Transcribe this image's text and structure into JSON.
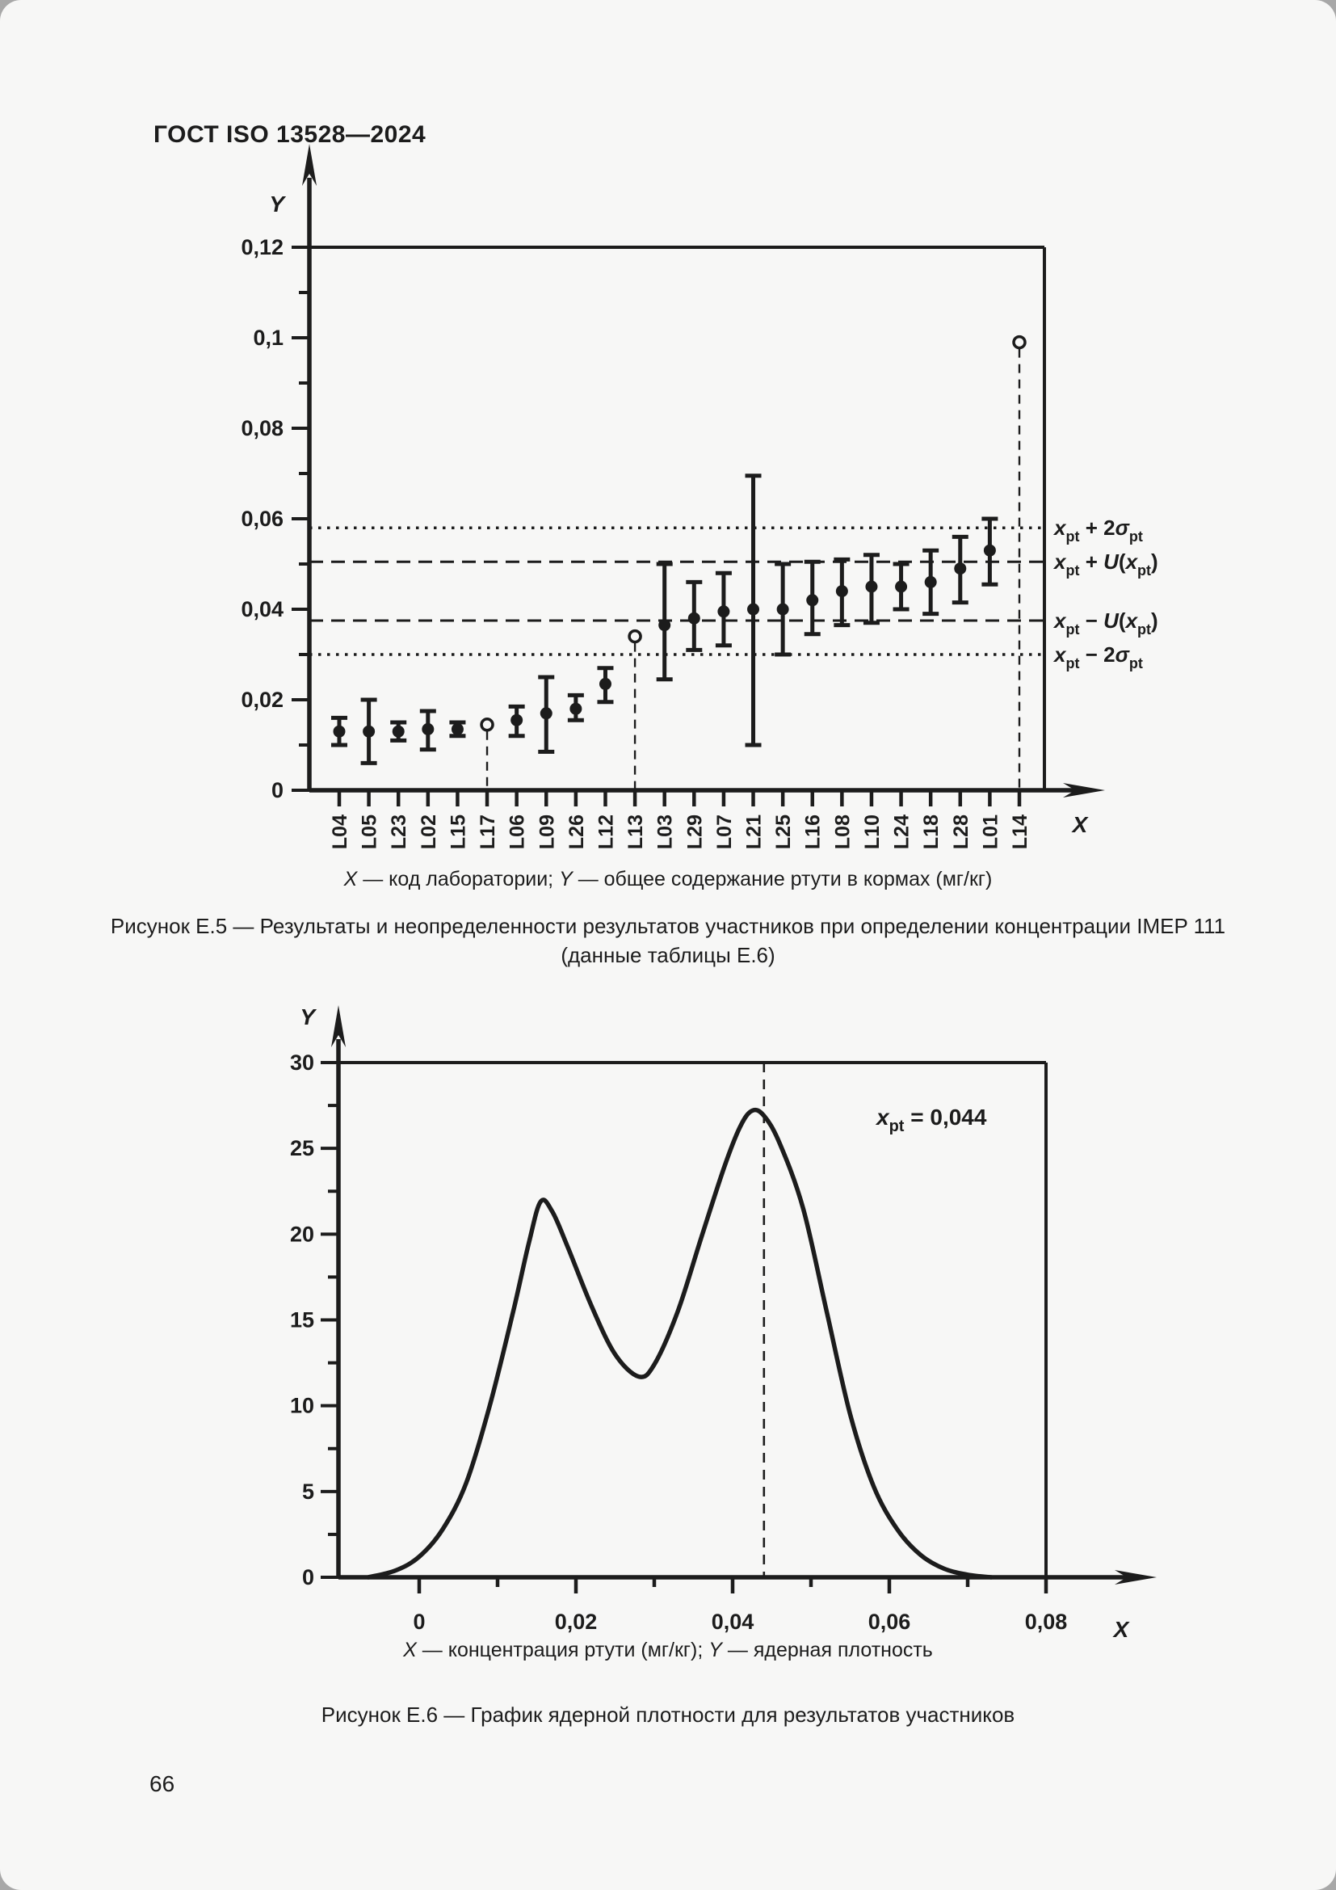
{
  "page": {
    "header": "ГОСТ ISO 13528—2024",
    "page_number": "66",
    "background": "#f7f7f6",
    "ink": "#1c1c1c"
  },
  "figure_e5": {
    "legend_x_var": "X",
    "legend_x_rest": " — код лаборатории; ",
    "legend_y_var": "Y",
    "legend_y_rest": " — общее содержание ртути в кормах (мг/кг)",
    "caption_line1": "Рисунок Е.5 — Результаты и неопределенности результатов участников при определении концентрации IMEP 111",
    "caption_line2": "(данные таблицы Е.6)"
  },
  "figure_e6": {
    "legend_x_var": "X",
    "legend_x_rest": " — концентрация ртути (мг/кг); ",
    "legend_y_var": "Y",
    "legend_y_rest": " — ядерная плотность",
    "caption": "Рисунок Е.6 — График ядерной плотности для результатов участников"
  },
  "chart_data": [
    {
      "type": "scatter",
      "title": "Результаты и неопределенности результатов участников, IMEP 111",
      "xlabel": "X",
      "ylabel": "Y",
      "ylim": [
        0,
        0.12
      ],
      "y_ticks": [
        0,
        0.02,
        0.04,
        0.06,
        0.08,
        0.1,
        0.12
      ],
      "y_tick_labels": [
        "0",
        "0,02",
        "0,04",
        "0,06",
        "0,08",
        "0,1",
        "0,12"
      ],
      "y_minor_step": 0.01,
      "grid": false,
      "categories": [
        "L04",
        "L05",
        "L23",
        "L02",
        "L15",
        "L17",
        "L06",
        "L09",
        "L26",
        "L12",
        "L13",
        "L03",
        "L29",
        "L07",
        "L21",
        "L25",
        "L16",
        "L08",
        "L10",
        "L24",
        "L18",
        "L28",
        "L01",
        "L14"
      ],
      "points": [
        {
          "lab": "L04",
          "value": 0.013,
          "low": 0.01,
          "high": 0.016,
          "marker": "filled"
        },
        {
          "lab": "L05",
          "value": 0.013,
          "low": 0.006,
          "high": 0.02,
          "marker": "filled"
        },
        {
          "lab": "L23",
          "value": 0.013,
          "low": 0.011,
          "high": 0.015,
          "marker": "filled"
        },
        {
          "lab": "L02",
          "value": 0.0135,
          "low": 0.009,
          "high": 0.0175,
          "marker": "filled"
        },
        {
          "lab": "L15",
          "value": 0.0135,
          "low": 0.012,
          "high": 0.015,
          "marker": "filled"
        },
        {
          "lab": "L17",
          "value": 0.0145,
          "low": null,
          "high": null,
          "marker": "open-stem"
        },
        {
          "lab": "L06",
          "value": 0.0155,
          "low": 0.012,
          "high": 0.0185,
          "marker": "filled"
        },
        {
          "lab": "L09",
          "value": 0.017,
          "low": 0.0085,
          "high": 0.025,
          "marker": "filled"
        },
        {
          "lab": "L26",
          "value": 0.018,
          "low": 0.0155,
          "high": 0.021,
          "marker": "filled"
        },
        {
          "lab": "L12",
          "value": 0.0235,
          "low": 0.0195,
          "high": 0.027,
          "marker": "filled"
        },
        {
          "lab": "L13",
          "value": 0.034,
          "low": null,
          "high": null,
          "marker": "open-stem"
        },
        {
          "lab": "L03",
          "value": 0.0365,
          "low": 0.0245,
          "high": 0.05,
          "marker": "filled"
        },
        {
          "lab": "L29",
          "value": 0.038,
          "low": 0.031,
          "high": 0.046,
          "marker": "filled"
        },
        {
          "lab": "L07",
          "value": 0.0395,
          "low": 0.032,
          "high": 0.048,
          "marker": "filled"
        },
        {
          "lab": "L21",
          "value": 0.04,
          "low": 0.01,
          "high": 0.0695,
          "marker": "filled"
        },
        {
          "lab": "L25",
          "value": 0.04,
          "low": 0.03,
          "high": 0.05,
          "marker": "filled"
        },
        {
          "lab": "L16",
          "value": 0.042,
          "low": 0.0345,
          "high": 0.0505,
          "marker": "filled"
        },
        {
          "lab": "L08",
          "value": 0.044,
          "low": 0.0365,
          "high": 0.051,
          "marker": "filled"
        },
        {
          "lab": "L10",
          "value": 0.045,
          "low": 0.037,
          "high": 0.052,
          "marker": "filled"
        },
        {
          "lab": "L24",
          "value": 0.045,
          "low": 0.04,
          "high": 0.05,
          "marker": "filled"
        },
        {
          "lab": "L18",
          "value": 0.046,
          "low": 0.039,
          "high": 0.053,
          "marker": "filled"
        },
        {
          "lab": "L28",
          "value": 0.049,
          "low": 0.0415,
          "high": 0.056,
          "marker": "filled"
        },
        {
          "lab": "L01",
          "value": 0.053,
          "low": 0.0455,
          "high": 0.06,
          "marker": "filled"
        },
        {
          "lab": "L14",
          "value": 0.099,
          "low": null,
          "high": null,
          "marker": "open-stem"
        }
      ],
      "ref_lines": [
        {
          "value": 0.058,
          "style": "dotted",
          "label": "x~pt~ + 2σ~pt~"
        },
        {
          "value": 0.0505,
          "style": "dashed",
          "label": "x~pt~ + U(x~pt~)"
        },
        {
          "value": 0.0375,
          "style": "dashed",
          "label": "x~pt~ − U(x~pt~)"
        },
        {
          "value": 0.03,
          "style": "dotted",
          "label": "x~pt~ − 2σ~pt~"
        }
      ]
    },
    {
      "type": "line",
      "title": "График ядерной плотности для результатов участников",
      "xlabel": "X",
      "ylabel": "Y",
      "ylim": [
        0,
        30
      ],
      "xlim": [
        -0.0103,
        0.08
      ],
      "y_ticks": [
        0,
        5,
        10,
        15,
        20,
        25,
        30
      ],
      "y_tick_labels": [
        "0",
        "5",
        "10",
        "15",
        "20",
        "25",
        "30"
      ],
      "y_minor_step": 2.5,
      "x_ticks": [
        0,
        0.02,
        0.04,
        0.06,
        0.08
      ],
      "x_tick_labels": [
        "0",
        "0,02",
        "0,04",
        "0,06",
        "0,08"
      ],
      "x_minor_step": 0.01,
      "grid": false,
      "annotation": {
        "x": 0.044,
        "style": "dashed-vertical",
        "label": "x~pt~ = 0,044"
      },
      "curve": [
        [
          -0.0065,
          0
        ],
        [
          -0.003,
          0.4
        ],
        [
          0,
          1.2
        ],
        [
          0.003,
          2.8
        ],
        [
          0.006,
          5.5
        ],
        [
          0.009,
          10
        ],
        [
          0.012,
          15.5
        ],
        [
          0.014,
          19.5
        ],
        [
          0.0155,
          21.9
        ],
        [
          0.017,
          21.3
        ],
        [
          0.019,
          19.2
        ],
        [
          0.022,
          15.8
        ],
        [
          0.025,
          13.0
        ],
        [
          0.028,
          11.7
        ],
        [
          0.03,
          12.4
        ],
        [
          0.033,
          15.5
        ],
        [
          0.036,
          19.8
        ],
        [
          0.039,
          24.0
        ],
        [
          0.041,
          26.3
        ],
        [
          0.0425,
          27.2
        ],
        [
          0.044,
          26.9
        ],
        [
          0.046,
          25.3
        ],
        [
          0.049,
          21.5
        ],
        [
          0.052,
          15.5
        ],
        [
          0.055,
          9.5
        ],
        [
          0.058,
          5.3
        ],
        [
          0.061,
          2.8
        ],
        [
          0.064,
          1.3
        ],
        [
          0.067,
          0.5
        ],
        [
          0.07,
          0.15
        ],
        [
          0.073,
          0
        ]
      ]
    }
  ]
}
